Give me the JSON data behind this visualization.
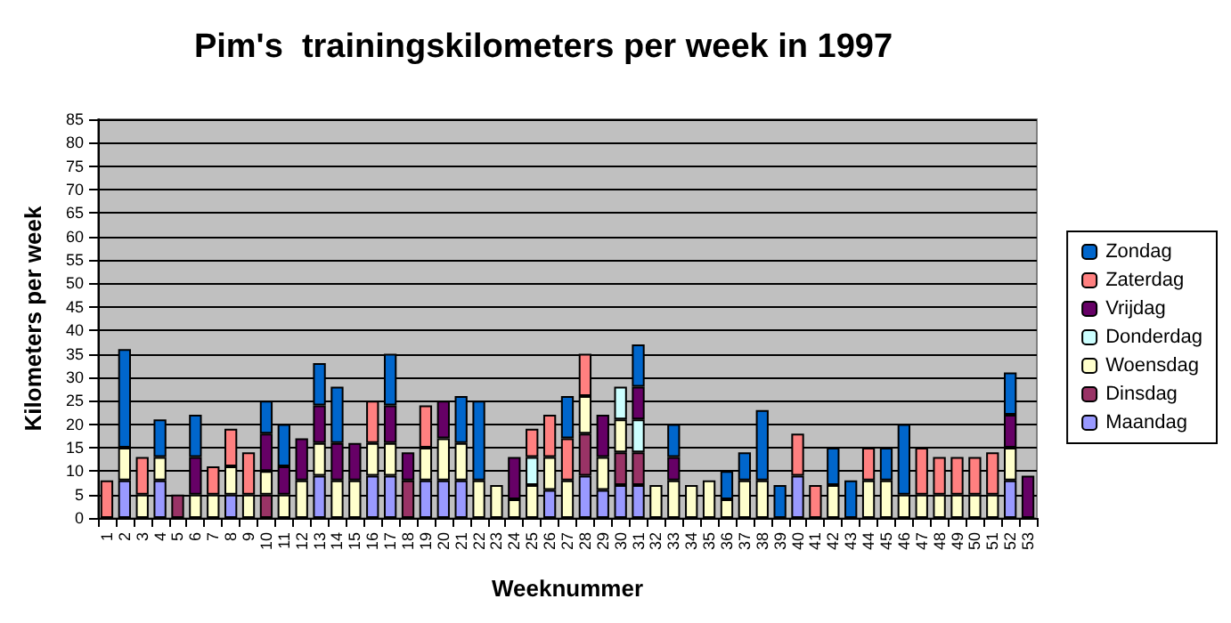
{
  "chart_data": {
    "type": "bar",
    "stacked": true,
    "title": "Pim's  trainingskilometers per week in 1997",
    "xlabel": "Weeknummer",
    "ylabel": "Kilometers per week",
    "categories": [
      "1",
      "2",
      "3",
      "4",
      "5",
      "6",
      "7",
      "8",
      "9",
      "10",
      "11",
      "12",
      "13",
      "14",
      "15",
      "16",
      "17",
      "18",
      "19",
      "20",
      "21",
      "22",
      "23",
      "24",
      "25",
      "26",
      "27",
      "28",
      "29",
      "30",
      "31",
      "32",
      "33",
      "34",
      "35",
      "36",
      "37",
      "38",
      "39",
      "40",
      "41",
      "42",
      "43",
      "44",
      "45",
      "46",
      "47",
      "48",
      "49",
      "50",
      "51",
      "52",
      "53"
    ],
    "series": [
      {
        "name": "Maandag",
        "color": "#9999ff",
        "values": [
          null,
          8,
          null,
          8,
          null,
          null,
          null,
          5,
          null,
          null,
          null,
          null,
          9,
          null,
          null,
          9,
          9,
          null,
          8,
          8,
          8,
          null,
          null,
          null,
          null,
          6,
          null,
          9,
          6,
          7,
          7,
          null,
          null,
          null,
          null,
          null,
          null,
          null,
          null,
          9,
          null,
          null,
          null,
          null,
          null,
          null,
          null,
          null,
          null,
          null,
          null,
          8,
          null
        ]
      },
      {
        "name": "Dinsdag",
        "color": "#993366",
        "values": [
          null,
          null,
          null,
          null,
          5,
          null,
          null,
          null,
          null,
          5,
          null,
          null,
          null,
          null,
          null,
          null,
          null,
          8,
          null,
          null,
          null,
          null,
          null,
          null,
          null,
          null,
          null,
          9,
          null,
          7,
          7,
          null,
          null,
          null,
          null,
          null,
          null,
          null,
          null,
          null,
          null,
          null,
          null,
          null,
          null,
          null,
          null,
          null,
          null,
          null,
          null,
          null,
          null
        ]
      },
      {
        "name": "Woensdag",
        "color": "#ffffcc",
        "values": [
          null,
          7,
          5,
          5,
          null,
          5,
          5,
          6,
          5,
          5,
          5,
          8,
          7,
          8,
          8,
          7,
          7,
          null,
          7,
          9,
          8,
          8,
          7,
          4,
          7,
          7,
          8,
          8,
          7,
          7,
          null,
          7,
          8,
          7,
          8,
          4,
          8,
          8,
          null,
          null,
          null,
          7,
          null,
          8,
          8,
          5,
          5,
          5,
          5,
          5,
          5,
          7,
          null
        ]
      },
      {
        "name": "Donderdag",
        "color": "#ccffff",
        "values": [
          null,
          null,
          null,
          null,
          null,
          null,
          null,
          null,
          null,
          null,
          null,
          null,
          null,
          null,
          null,
          null,
          null,
          null,
          null,
          null,
          null,
          null,
          null,
          null,
          6,
          null,
          null,
          null,
          null,
          7,
          7,
          null,
          null,
          null,
          null,
          null,
          null,
          null,
          null,
          null,
          null,
          null,
          null,
          null,
          null,
          null,
          null,
          null,
          null,
          null,
          null,
          null,
          null
        ]
      },
      {
        "name": "Vrijdag",
        "color": "#660066",
        "values": [
          null,
          null,
          null,
          null,
          null,
          8,
          null,
          null,
          null,
          8,
          6,
          9,
          8,
          8,
          8,
          null,
          8,
          6,
          null,
          8,
          null,
          null,
          null,
          9,
          null,
          null,
          null,
          null,
          9,
          null,
          7,
          null,
          5,
          null,
          null,
          null,
          null,
          null,
          null,
          null,
          null,
          null,
          null,
          null,
          null,
          null,
          null,
          null,
          null,
          null,
          null,
          7,
          9
        ]
      },
      {
        "name": "Zaterdag",
        "color": "#ff8080",
        "values": [
          8,
          null,
          8,
          null,
          null,
          null,
          6,
          8,
          9,
          null,
          null,
          null,
          null,
          null,
          null,
          9,
          null,
          null,
          9,
          null,
          null,
          null,
          null,
          null,
          6,
          9,
          9,
          9,
          null,
          null,
          null,
          null,
          null,
          null,
          null,
          null,
          null,
          null,
          null,
          9,
          7,
          null,
          null,
          7,
          null,
          null,
          10,
          8,
          8,
          8,
          9,
          null,
          null
        ]
      },
      {
        "name": "Zondag",
        "color": "#0066cc",
        "values": [
          null,
          21,
          null,
          8,
          null,
          9,
          null,
          null,
          null,
          7,
          9,
          null,
          9,
          12,
          null,
          null,
          11,
          null,
          null,
          null,
          10,
          17,
          null,
          null,
          null,
          null,
          9,
          null,
          null,
          null,
          9,
          null,
          7,
          null,
          null,
          6,
          6,
          15,
          7,
          null,
          null,
          8,
          8,
          null,
          7,
          15,
          null,
          null,
          null,
          null,
          null,
          9,
          null
        ]
      }
    ],
    "ylim": [
      0,
      85
    ],
    "yticks": [
      0,
      5,
      10,
      15,
      20,
      25,
      30,
      35,
      40,
      45,
      50,
      55,
      60,
      65,
      70,
      75,
      80,
      85
    ],
    "grid": "y",
    "legend": "right"
  }
}
